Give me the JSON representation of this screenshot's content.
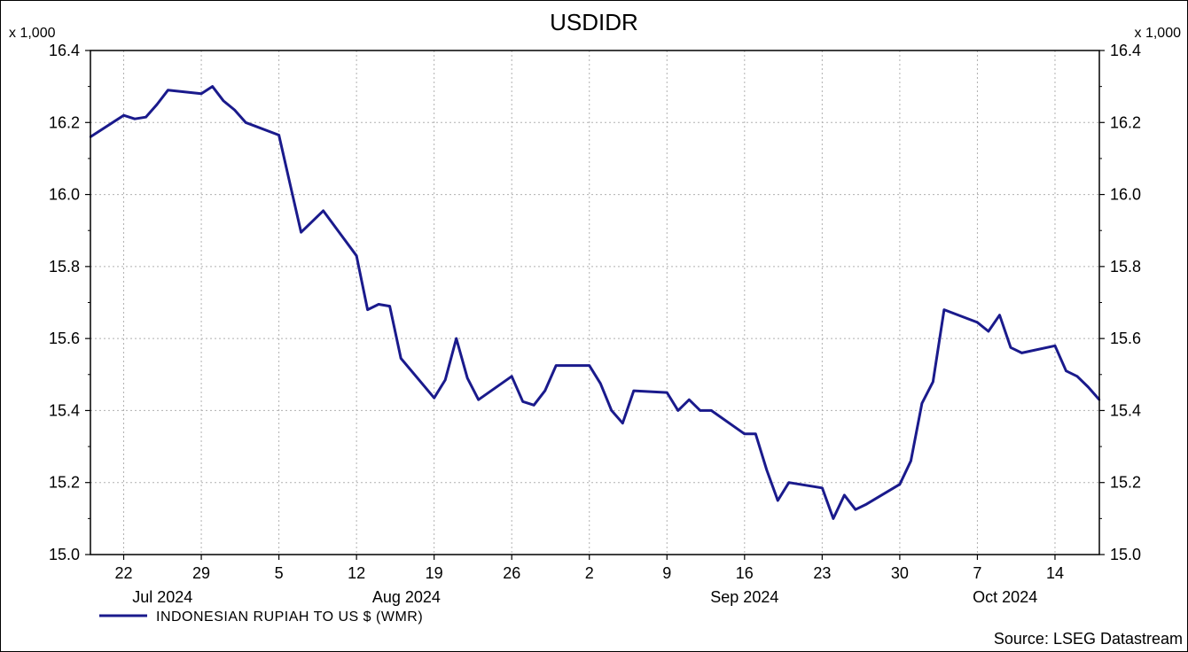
{
  "chart_data": {
    "type": "line",
    "title": "USDIDR",
    "scale_note_left": "x 1,000",
    "scale_note_right": "x 1,000",
    "ylim": [
      15.0,
      16.4
    ],
    "yticks": [
      "15.0",
      "15.2",
      "15.4",
      "15.6",
      "15.8",
      "16.0",
      "16.2",
      "16.4"
    ],
    "xticks": [
      "22",
      "29",
      "5",
      "12",
      "19",
      "26",
      "2",
      "9",
      "16",
      "23",
      "30",
      "7",
      "14"
    ],
    "month_labels": [
      "Jul 2024",
      "Aug 2024",
      "Sep 2024",
      "Oct 2024"
    ],
    "grid": true,
    "legend_position": "bottom-left",
    "source": "Source: LSEG Datastream",
    "series": [
      {
        "name": "INDONESIAN RUPIAH TO US $ (WMR)",
        "color": "#1a1a8c",
        "x": [
          "2024-07-19",
          "2024-07-22",
          "2024-07-23",
          "2024-07-24",
          "2024-07-25",
          "2024-07-26",
          "2024-07-29",
          "2024-07-30",
          "2024-07-31",
          "2024-08-01",
          "2024-08-02",
          "2024-08-05",
          "2024-08-06",
          "2024-08-07",
          "2024-08-08",
          "2024-08-09",
          "2024-08-12",
          "2024-08-13",
          "2024-08-14",
          "2024-08-15",
          "2024-08-16",
          "2024-08-19",
          "2024-08-20",
          "2024-08-21",
          "2024-08-22",
          "2024-08-23",
          "2024-08-26",
          "2024-08-27",
          "2024-08-28",
          "2024-08-29",
          "2024-08-30",
          "2024-09-02",
          "2024-09-03",
          "2024-09-04",
          "2024-09-05",
          "2024-09-06",
          "2024-09-09",
          "2024-09-10",
          "2024-09-11",
          "2024-09-12",
          "2024-09-13",
          "2024-09-16",
          "2024-09-17",
          "2024-09-18",
          "2024-09-19",
          "2024-09-20",
          "2024-09-23",
          "2024-09-24",
          "2024-09-25",
          "2024-09-26",
          "2024-09-27",
          "2024-09-30",
          "2024-10-01",
          "2024-10-02",
          "2024-10-03",
          "2024-10-04",
          "2024-10-07",
          "2024-10-08",
          "2024-10-09",
          "2024-10-10",
          "2024-10-11",
          "2024-10-14",
          "2024-10-15",
          "2024-10-16",
          "2024-10-17",
          "2024-10-18"
        ],
        "values": [
          16.16,
          16.22,
          16.21,
          16.215,
          16.25,
          16.29,
          16.28,
          16.3,
          16.26,
          16.235,
          16.2,
          16.165,
          16.03,
          15.895,
          15.925,
          15.955,
          15.83,
          15.68,
          15.695,
          15.69,
          15.545,
          15.435,
          15.485,
          15.6,
          15.49,
          15.43,
          15.495,
          15.425,
          15.415,
          15.455,
          15.525,
          15.525,
          15.475,
          15.4,
          15.365,
          15.455,
          15.45,
          15.4,
          15.43,
          15.4,
          15.4,
          15.335,
          15.335,
          15.235,
          15.15,
          15.2,
          15.185,
          15.1,
          15.165,
          15.125,
          15.14,
          15.195,
          15.26,
          15.42,
          15.48,
          15.68,
          15.645,
          15.62,
          15.665,
          15.575,
          15.56,
          15.58,
          15.51,
          15.495,
          15.465,
          15.43
        ]
      }
    ]
  }
}
